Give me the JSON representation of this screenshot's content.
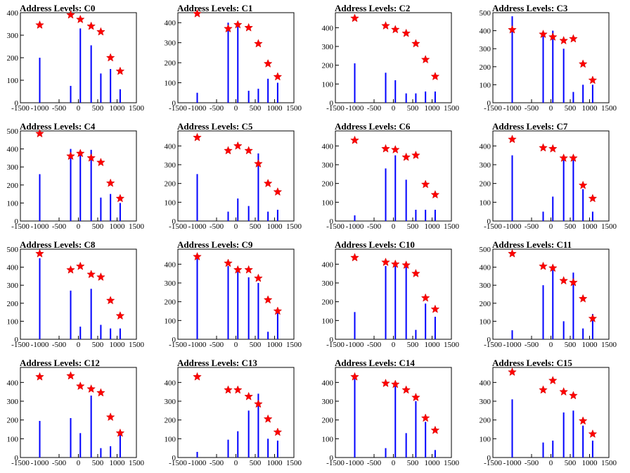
{
  "chart_data": [
    {
      "type": "bar",
      "title": "Address Levels: C0",
      "xlim": [
        -1500,
        1500
      ],
      "ylim": [
        0,
        400
      ],
      "x_ticks": [
        "-1500",
        "-1000",
        "-500",
        "0",
        "500",
        "1000",
        "1500"
      ],
      "y_ticks": [
        "0",
        "100",
        "200",
        "300",
        "400"
      ],
      "series": [
        {
          "type": "bar",
          "color": "#0000ff",
          "x": [
            -1000,
            -200,
            50,
            330,
            580,
            830,
            1080
          ],
          "values": [
            200,
            75,
            330,
            255,
            130,
            150,
            60
          ]
        },
        {
          "type": "scatter",
          "color": "#ff0000",
          "marker": "star",
          "x": [
            -1000,
            -200,
            50,
            330,
            580,
            830,
            1080
          ],
          "values": [
            345,
            390,
            370,
            340,
            315,
            200,
            140
          ]
        }
      ]
    },
    {
      "type": "bar",
      "title": "Address Levels: C1",
      "xlim": [
        -1500,
        1500
      ],
      "ylim": [
        0,
        450
      ],
      "x_ticks": [
        "-1500",
        "-1000",
        "-500",
        "0",
        "500",
        "1000",
        "1500"
      ],
      "y_ticks": [
        "0",
        "100",
        "200",
        "300",
        "400"
      ],
      "series": [
        {
          "type": "bar",
          "color": "#0000ff",
          "x": [
            -1000,
            -200,
            50,
            330,
            580,
            830,
            1080
          ],
          "values": [
            50,
            400,
            390,
            60,
            70,
            120,
            100
          ]
        },
        {
          "type": "scatter",
          "color": "#ff0000",
          "marker": "star",
          "x": [
            -1000,
            -200,
            50,
            330,
            580,
            830,
            1080
          ],
          "values": [
            445,
            370,
            390,
            375,
            295,
            195,
            130
          ]
        }
      ]
    },
    {
      "type": "bar",
      "title": "Address Levels: C2",
      "xlim": [
        -1500,
        1500
      ],
      "ylim": [
        0,
        480
      ],
      "x_ticks": [
        "-1500",
        "-1000",
        "-500",
        "0",
        "500",
        "1000",
        "1500"
      ],
      "y_ticks": [
        "0",
        "100",
        "200",
        "300",
        "400"
      ],
      "series": [
        {
          "type": "bar",
          "color": "#0000ff",
          "x": [
            -1000,
            -200,
            50,
            330,
            580,
            830,
            1080
          ],
          "values": [
            210,
            160,
            120,
            50,
            50,
            60,
            60
          ]
        },
        {
          "type": "scatter",
          "color": "#ff0000",
          "marker": "star",
          "x": [
            -1000,
            -200,
            50,
            330,
            580,
            830,
            1080
          ],
          "values": [
            450,
            410,
            390,
            370,
            315,
            230,
            140
          ]
        }
      ]
    },
    {
      "type": "bar",
      "title": "Address Levels: C3",
      "xlim": [
        -1500,
        1500
      ],
      "ylim": [
        0,
        500
      ],
      "x_ticks": [
        "-1500",
        "-1000",
        "-500",
        "0",
        "500",
        "1000",
        "1500"
      ],
      "y_ticks": [
        "0",
        "100",
        "200",
        "300",
        "400",
        "500"
      ],
      "series": [
        {
          "type": "bar",
          "color": "#0000ff",
          "x": [
            -1000,
            -200,
            50,
            330,
            580,
            830,
            1080
          ],
          "values": [
            480,
            370,
            400,
            300,
            60,
            100,
            100
          ]
        },
        {
          "type": "scatter",
          "color": "#ff0000",
          "marker": "star",
          "x": [
            -1000,
            -200,
            50,
            330,
            580,
            830,
            1080
          ],
          "values": [
            405,
            380,
            365,
            345,
            355,
            215,
            125
          ]
        }
      ]
    },
    {
      "type": "bar",
      "title": "Address Levels: C4",
      "xlim": [
        -1500,
        1500
      ],
      "ylim": [
        0,
        500
      ],
      "x_ticks": [
        "-1500",
        "-1000",
        "-500",
        "0",
        "500",
        "1000",
        "1500"
      ],
      "y_ticks": [
        "0",
        "100",
        "200",
        "300",
        "400",
        "500"
      ],
      "series": [
        {
          "type": "bar",
          "color": "#0000ff",
          "x": [
            -1000,
            -200,
            50,
            330,
            580,
            830,
            1080
          ],
          "values": [
            260,
            400,
            390,
            395,
            130,
            150,
            100
          ]
        },
        {
          "type": "scatter",
          "color": "#ff0000",
          "marker": "star",
          "x": [
            -1000,
            -200,
            50,
            330,
            580,
            830,
            1080
          ],
          "values": [
            485,
            360,
            375,
            350,
            325,
            210,
            125
          ]
        }
      ]
    },
    {
      "type": "bar",
      "title": "Address Levels: C5",
      "xlim": [
        -1500,
        1500
      ],
      "ylim": [
        0,
        480
      ],
      "x_ticks": [
        "-1500",
        "-1000",
        "-500",
        "0",
        "500",
        "1000",
        "1500"
      ],
      "y_ticks": [
        "0",
        "100",
        "200",
        "300",
        "400"
      ],
      "series": [
        {
          "type": "bar",
          "color": "#0000ff",
          "x": [
            -1000,
            -200,
            50,
            330,
            580,
            830,
            1080
          ],
          "values": [
            250,
            50,
            120,
            80,
            360,
            50,
            60
          ]
        },
        {
          "type": "scatter",
          "color": "#ff0000",
          "marker": "star",
          "x": [
            -1000,
            -200,
            50,
            330,
            580,
            830,
            1080
          ],
          "values": [
            445,
            375,
            400,
            375,
            305,
            200,
            155
          ]
        }
      ]
    },
    {
      "type": "bar",
      "title": "Address Levels: C6",
      "xlim": [
        -1500,
        1500
      ],
      "ylim": [
        0,
        480
      ],
      "x_ticks": [
        "-1500",
        "-1000",
        "-500",
        "0",
        "500",
        "1000",
        "1500"
      ],
      "y_ticks": [
        "0",
        "100",
        "200",
        "300",
        "400"
      ],
      "series": [
        {
          "type": "bar",
          "color": "#0000ff",
          "x": [
            -1000,
            -200,
            50,
            330,
            580,
            830,
            1080
          ],
          "values": [
            30,
            280,
            350,
            220,
            60,
            60,
            60
          ]
        },
        {
          "type": "scatter",
          "color": "#ff0000",
          "marker": "star",
          "x": [
            -1000,
            -200,
            50,
            330,
            580,
            830,
            1080
          ],
          "values": [
            430,
            385,
            380,
            340,
            350,
            195,
            140
          ]
        }
      ]
    },
    {
      "type": "bar",
      "title": "Address Levels: C7",
      "xlim": [
        -1500,
        1500
      ],
      "ylim": [
        0,
        480
      ],
      "x_ticks": [
        "-1500",
        "-1000",
        "-500",
        "0",
        "500",
        "1000",
        "1500"
      ],
      "y_ticks": [
        "0",
        "100",
        "200",
        "300",
        "400"
      ],
      "series": [
        {
          "type": "bar",
          "color": "#0000ff",
          "x": [
            -1000,
            -200,
            50,
            330,
            580,
            830,
            1080
          ],
          "values": [
            350,
            50,
            130,
            330,
            330,
            170,
            50
          ]
        },
        {
          "type": "scatter",
          "color": "#ff0000",
          "marker": "star",
          "x": [
            -1000,
            -200,
            50,
            330,
            580,
            830,
            1080
          ],
          "values": [
            435,
            390,
            385,
            335,
            335,
            190,
            120
          ]
        }
      ]
    },
    {
      "type": "bar",
      "title": "Address Levels: C8",
      "xlim": [
        -1500,
        1500
      ],
      "ylim": [
        0,
        500
      ],
      "x_ticks": [
        "-1500",
        "-1000",
        "-500",
        "0",
        "500",
        "1000",
        "1500"
      ],
      "y_ticks": [
        "0",
        "100",
        "200",
        "300",
        "400",
        "500"
      ],
      "series": [
        {
          "type": "bar",
          "color": "#0000ff",
          "x": [
            -1000,
            -200,
            50,
            330,
            580,
            830,
            1080
          ],
          "values": [
            450,
            270,
            70,
            280,
            80,
            60,
            60
          ]
        },
        {
          "type": "scatter",
          "color": "#ff0000",
          "marker": "star",
          "x": [
            -1000,
            -200,
            50,
            330,
            580,
            830,
            1080
          ],
          "values": [
            475,
            385,
            405,
            360,
            345,
            215,
            130
          ]
        }
      ]
    },
    {
      "type": "bar",
      "title": "Address Levels: C9",
      "xlim": [
        -1500,
        1500
      ],
      "ylim": [
        0,
        480
      ],
      "x_ticks": [
        "-1500",
        "-1000",
        "-500",
        "0",
        "500",
        "1000",
        "1500"
      ],
      "y_ticks": [
        "0",
        "100",
        "200",
        "300",
        "400"
      ],
      "series": [
        {
          "type": "bar",
          "color": "#0000ff",
          "x": [
            -1000,
            -200,
            50,
            330,
            580,
            830,
            1080
          ],
          "values": [
            430,
            390,
            370,
            330,
            300,
            40,
            140
          ]
        },
        {
          "type": "scatter",
          "color": "#ff0000",
          "marker": "star",
          "x": [
            -1000,
            -200,
            50,
            330,
            580,
            830,
            1080
          ],
          "values": [
            440,
            405,
            370,
            370,
            325,
            210,
            150
          ]
        }
      ]
    },
    {
      "type": "bar",
      "title": "Address Levels: C10",
      "xlim": [
        -1500,
        1500
      ],
      "ylim": [
        0,
        480
      ],
      "x_ticks": [
        "-1500",
        "-1000",
        "-500",
        "0",
        "500",
        "1000",
        "1500"
      ],
      "y_ticks": [
        "0",
        "100",
        "200",
        "300",
        "400"
      ],
      "series": [
        {
          "type": "bar",
          "color": "#0000ff",
          "x": [
            -1000,
            -200,
            50,
            330,
            580,
            830,
            1080
          ],
          "values": [
            145,
            390,
            400,
            390,
            50,
            190,
            120
          ]
        },
        {
          "type": "scatter",
          "color": "#ff0000",
          "marker": "star",
          "x": [
            -1000,
            -200,
            50,
            330,
            580,
            830,
            1080
          ],
          "values": [
            435,
            410,
            400,
            395,
            350,
            220,
            160
          ]
        }
      ]
    },
    {
      "type": "bar",
      "title": "Address Levels: C11",
      "xlim": [
        -1500,
        1500
      ],
      "ylim": [
        0,
        500
      ],
      "x_ticks": [
        "-1500",
        "-1000",
        "-500",
        "0",
        "500",
        "1000",
        "1500"
      ],
      "y_ticks": [
        "0",
        "100",
        "200",
        "300",
        "400",
        "500"
      ],
      "series": [
        {
          "type": "bar",
          "color": "#0000ff",
          "x": [
            -1000,
            -200,
            50,
            330,
            580,
            830,
            1080
          ],
          "values": [
            50,
            300,
            410,
            100,
            370,
            60,
            140
          ]
        },
        {
          "type": "scatter",
          "color": "#ff0000",
          "marker": "star",
          "x": [
            -1000,
            -200,
            50,
            330,
            580,
            830,
            1080
          ],
          "values": [
            475,
            405,
            395,
            325,
            315,
            225,
            115
          ]
        }
      ]
    },
    {
      "type": "bar",
      "title": "Address Levels: C12",
      "xlim": [
        -1500,
        1500
      ],
      "ylim": [
        0,
        480
      ],
      "x_ticks": [
        "-1500",
        "-1000",
        "-500",
        "0",
        "500",
        "1000",
        "1500"
      ],
      "y_ticks": [
        "0",
        "100",
        "200",
        "300",
        "400"
      ],
      "series": [
        {
          "type": "bar",
          "color": "#0000ff",
          "x": [
            -1000,
            -200,
            50,
            330,
            580,
            830,
            1080
          ],
          "values": [
            195,
            210,
            130,
            330,
            50,
            60,
            130
          ]
        },
        {
          "type": "scatter",
          "color": "#ff0000",
          "marker": "star",
          "x": [
            -1000,
            -200,
            50,
            330,
            580,
            830,
            1080
          ],
          "values": [
            430,
            435,
            380,
            365,
            345,
            215,
            130
          ]
        }
      ]
    },
    {
      "type": "bar",
      "title": "Address Levels: C13",
      "xlim": [
        -1500,
        1500
      ],
      "ylim": [
        0,
        480
      ],
      "x_ticks": [
        "-1500",
        "-1000",
        "-500",
        "0",
        "500",
        "1000",
        "1500"
      ],
      "y_ticks": [
        "0",
        "100",
        "200",
        "300",
        "400"
      ],
      "series": [
        {
          "type": "bar",
          "color": "#0000ff",
          "x": [
            -1000,
            -200,
            50,
            330,
            580,
            830,
            1080
          ],
          "values": [
            30,
            95,
            140,
            250,
            340,
            100,
            90
          ]
        },
        {
          "type": "scatter",
          "color": "#ff0000",
          "marker": "star",
          "x": [
            -1000,
            -200,
            50,
            330,
            580,
            830,
            1080
          ],
          "values": [
            430,
            360,
            360,
            325,
            285,
            205,
            135
          ]
        }
      ]
    },
    {
      "type": "bar",
      "title": "Address Levels: C14",
      "xlim": [
        -1500,
        1500
      ],
      "ylim": [
        0,
        480
      ],
      "x_ticks": [
        "-1500",
        "-1000",
        "-500",
        "0",
        "500",
        "1000",
        "1500"
      ],
      "y_ticks": [
        "0",
        "100",
        "200",
        "300",
        "400"
      ],
      "series": [
        {
          "type": "bar",
          "color": "#0000ff",
          "x": [
            -1000,
            -200,
            50,
            330,
            580,
            830,
            1080
          ],
          "values": [
            430,
            50,
            380,
            130,
            300,
            190,
            40
          ]
        },
        {
          "type": "scatter",
          "color": "#ff0000",
          "marker": "star",
          "x": [
            -1000,
            -200,
            50,
            330,
            580,
            830,
            1080
          ],
          "values": [
            430,
            395,
            390,
            360,
            320,
            210,
            145
          ]
        }
      ]
    },
    {
      "type": "bar",
      "title": "Address Levels: C15",
      "xlim": [
        -1500,
        1500
      ],
      "ylim": [
        0,
        480
      ],
      "x_ticks": [
        "-1500",
        "-1000",
        "-500",
        "0",
        "500",
        "1000",
        "1500"
      ],
      "y_ticks": [
        "0",
        "100",
        "200",
        "300",
        "400"
      ],
      "series": [
        {
          "type": "bar",
          "color": "#0000ff",
          "x": [
            -1000,
            -200,
            50,
            330,
            580,
            830,
            1080
          ],
          "values": [
            310,
            80,
            90,
            240,
            250,
            170,
            90
          ]
        },
        {
          "type": "scatter",
          "color": "#ff0000",
          "marker": "star",
          "x": [
            -1000,
            -200,
            50,
            330,
            580,
            830,
            1080
          ],
          "values": [
            455,
            360,
            410,
            350,
            330,
            195,
            125
          ]
        }
      ]
    }
  ]
}
